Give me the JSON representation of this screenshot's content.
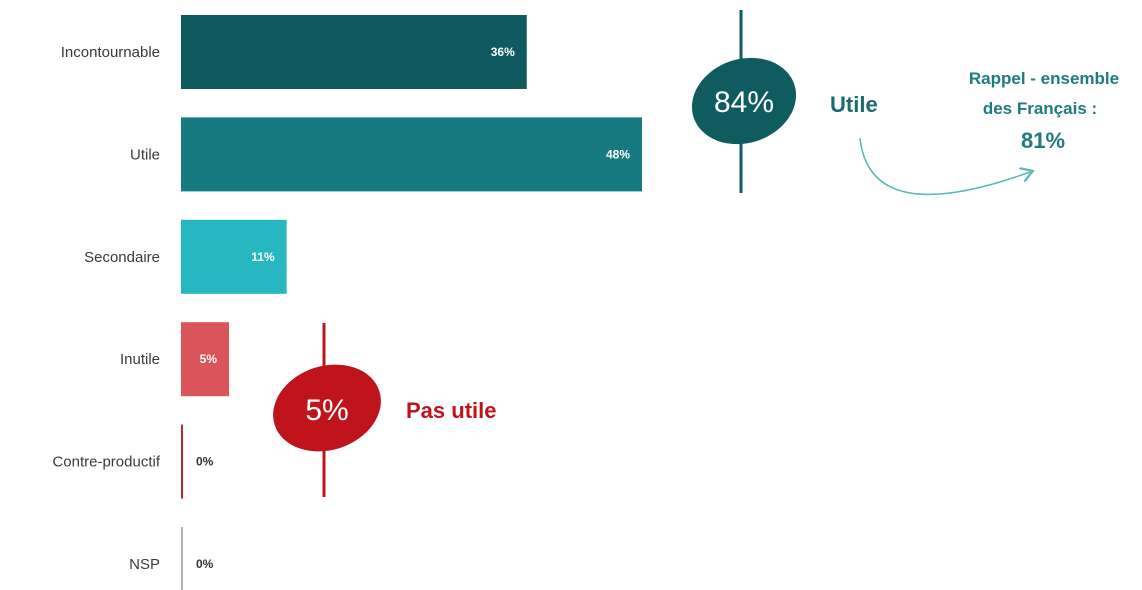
{
  "chart_data": {
    "type": "bar",
    "orientation": "horizontal",
    "categories": [
      "Incontournable",
      "Utile",
      "Secondaire",
      "Inutile",
      "Contre-productif",
      "NSP"
    ],
    "values": [
      36,
      48,
      11,
      5,
      0,
      0
    ],
    "value_labels": [
      "36%",
      "48%",
      "11%",
      "5%",
      "0%",
      "0%"
    ],
    "colors": [
      "#0e5a5e",
      "#167a80",
      "#26b7c0",
      "#d9555a",
      "#b52a30",
      "#b3b3b3"
    ],
    "xlim": [
      0,
      100
    ],
    "grid": false,
    "legend": "none"
  },
  "groups": {
    "utile": {
      "value": "84%",
      "label": "Utile",
      "color": "#0f5c60"
    },
    "pas_utile": {
      "value": "5%",
      "label": "Pas utile",
      "color": "#c0141c"
    }
  },
  "recall": {
    "line1": "Rappel - ensemble",
    "line2": "des Français :",
    "value": "81%"
  }
}
